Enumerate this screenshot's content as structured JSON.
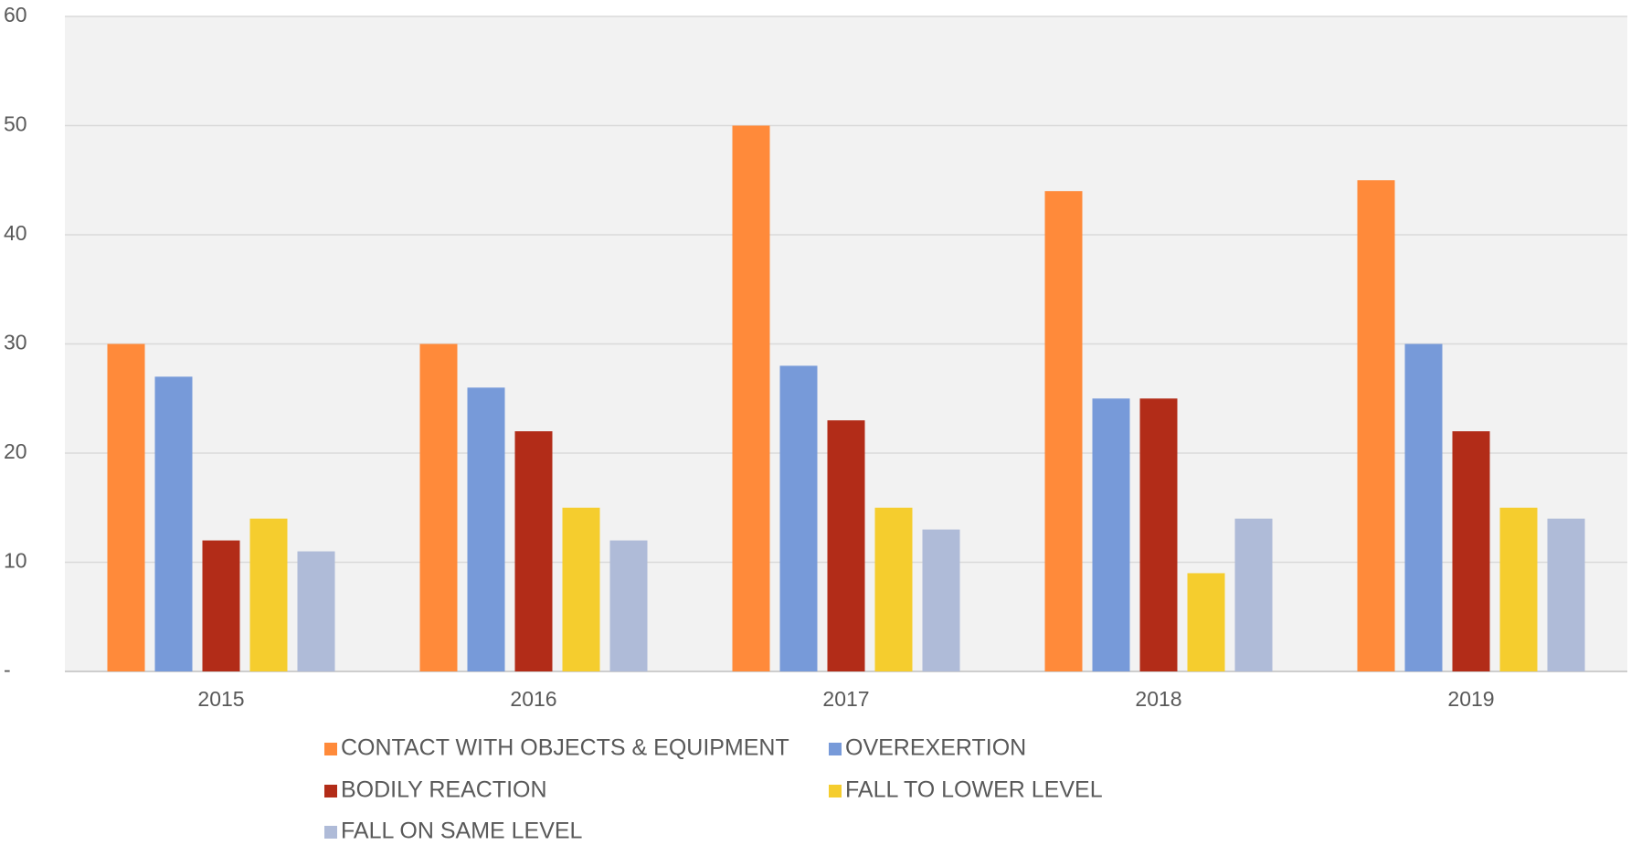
{
  "chart_data": {
    "type": "bar",
    "categories": [
      "2015",
      "2016",
      "2017",
      "2018",
      "2019"
    ],
    "series": [
      {
        "name": "CONTACT WITH OBJECTS & EQUIPMENT",
        "color": "#ff8a3a",
        "values": [
          30,
          30,
          50,
          44,
          45
        ]
      },
      {
        "name": "OVEREXERTION",
        "color": "#779ad9",
        "values": [
          27,
          26,
          28,
          25,
          30
        ]
      },
      {
        "name": "BODILY REACTION",
        "color": "#b22c18",
        "values": [
          12,
          22,
          23,
          25,
          22
        ]
      },
      {
        "name": "FALL TO LOWER LEVEL",
        "color": "#f5cd2e",
        "values": [
          14,
          15,
          15,
          9,
          15
        ]
      },
      {
        "name": "FALL ON SAME LEVEL",
        "color": "#afbbd8",
        "values": [
          11,
          12,
          13,
          14,
          14
        ]
      }
    ],
    "ylim": [
      0,
      60
    ],
    "yticks": [
      {
        "value": 0,
        "label": "-"
      },
      10,
      20,
      30,
      40,
      50,
      60
    ],
    "grid": true,
    "legend": "bottom"
  }
}
